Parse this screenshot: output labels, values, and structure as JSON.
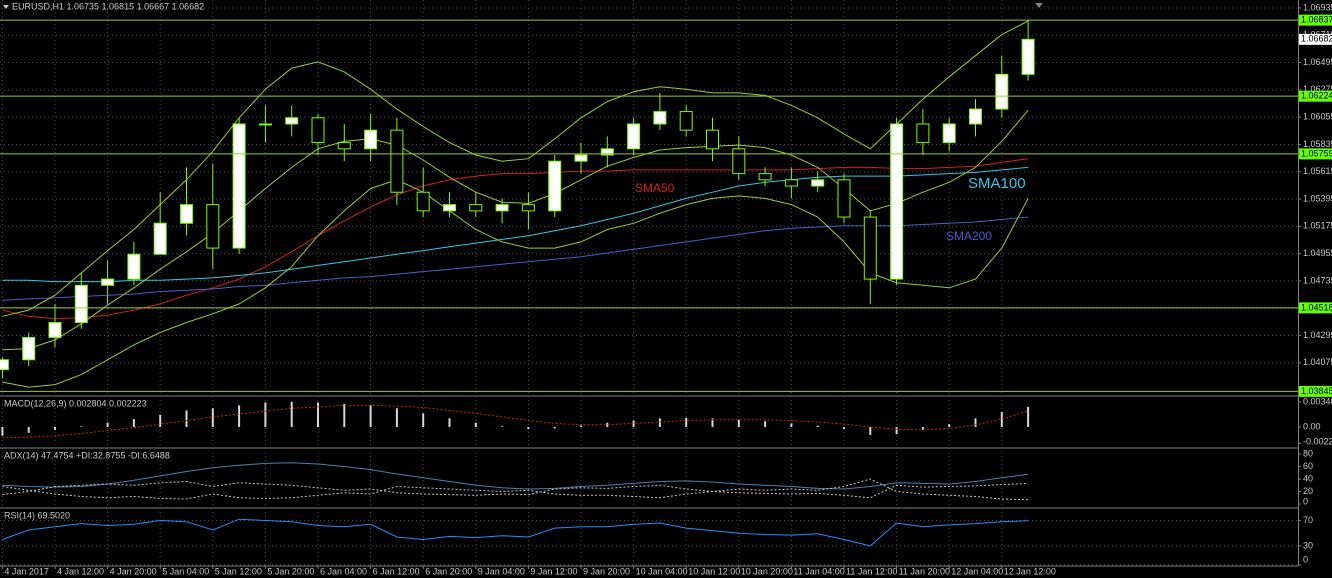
{
  "chart_data": [
    {
      "type": "candlestick",
      "title": "EURUSD,H1  1.06735 1.06815 1.06667 1.06682",
      "categories": [
        "4 Jan 2017",
        null,
        "4 Jan 12:00",
        null,
        "4 Jan 20:00",
        null,
        "5 Jan 04:00",
        null,
        "5 Jan 12:00",
        null,
        "5 Jan 20:00",
        null,
        "6 Jan 04:00",
        null,
        "6 Jan 12:00",
        null,
        "6 Jan 20:00",
        null,
        "9 Jan 04:00",
        null,
        "9 Jan 12:00",
        null,
        "9 Jan 20:00",
        null,
        "10 Jan 04:00",
        null,
        "10 Jan 12:00",
        null,
        "10 Jan 20:00",
        null,
        "11 Jan 04:00",
        null,
        "11 Jan 12:00",
        null,
        "11 Jan 20:00",
        null,
        "12 Jan 04:00",
        null,
        "12 Jan 12:00",
        null
      ],
      "open": [
        1.0402,
        1.041,
        1.0428,
        1.044,
        1.047,
        1.0475,
        1.0495,
        1.052,
        1.0535,
        1.05,
        1.06,
        1.06,
        1.0605,
        1.0585,
        1.058,
        1.0595,
        1.0545,
        1.053,
        1.0535,
        1.053,
        1.0535,
        1.053,
        1.057,
        1.0575,
        1.058,
        1.06,
        1.061,
        1.0595,
        1.058,
        1.056,
        1.0555,
        1.055,
        1.0555,
        1.0525,
        1.0475,
        1.06,
        1.0585,
        1.06,
        1.0612,
        1.064
      ],
      "high": [
        1.0412,
        1.0432,
        1.0455,
        1.048,
        1.049,
        1.0505,
        1.0545,
        1.0565,
        1.0568,
        1.0605,
        1.0615,
        1.0615,
        1.0608,
        1.06,
        1.0608,
        1.0605,
        1.0565,
        1.0545,
        1.0545,
        1.054,
        1.0545,
        1.0575,
        1.0585,
        1.059,
        1.0605,
        1.0625,
        1.0615,
        1.0605,
        1.059,
        1.0565,
        1.0565,
        1.0562,
        1.056,
        1.053,
        1.0605,
        1.0612,
        1.0605,
        1.062,
        1.0655,
        1.06837
      ],
      "low": [
        1.0395,
        1.0405,
        1.042,
        1.0435,
        1.0455,
        1.047,
        1.0495,
        1.051,
        1.0483,
        1.0495,
        1.0585,
        1.059,
        1.0575,
        1.057,
        1.057,
        1.0535,
        1.0525,
        1.0525,
        1.0525,
        1.052,
        1.0515,
        1.0525,
        1.056,
        1.0565,
        1.0575,
        1.0595,
        1.059,
        1.057,
        1.0555,
        1.055,
        1.054,
        1.0545,
        1.052,
        1.0455,
        1.047,
        1.0575,
        1.0578,
        1.059,
        1.0605,
        1.0635
      ],
      "close": [
        1.041,
        1.0428,
        1.044,
        1.047,
        1.0475,
        1.0495,
        1.052,
        1.0535,
        1.05,
        1.06,
        1.06,
        1.0605,
        1.0585,
        1.058,
        1.0595,
        1.0545,
        1.053,
        1.0535,
        1.053,
        1.0535,
        1.053,
        1.057,
        1.0575,
        1.058,
        1.06,
        1.061,
        1.0595,
        1.058,
        1.056,
        1.0555,
        1.055,
        1.0555,
        1.0525,
        1.0475,
        1.06,
        1.0585,
        1.06,
        1.0612,
        1.064,
        1.06682
      ],
      "up_color": "#ffffff",
      "down_color": "#000000",
      "wick_color": "#7cfc00",
      "series": [
        {
          "name": "SMA50",
          "color": "#d2201e",
          "values": [
            1.045,
            1.0445,
            1.0443,
            1.0444,
            1.0446,
            1.045,
            1.0455,
            1.0462,
            1.0468,
            1.0475,
            1.0485,
            1.0497,
            1.051,
            1.0522,
            1.0533,
            1.0543,
            1.055,
            1.0555,
            1.0558,
            1.056,
            1.056,
            1.0561,
            1.0562,
            1.0562,
            1.0563,
            1.0563,
            1.0563,
            1.0563,
            1.0563,
            1.0563,
            1.0563,
            1.0564,
            1.0565,
            1.0565,
            1.0564,
            1.0564,
            1.0565,
            1.0566,
            1.0569,
            1.0572
          ]
        },
        {
          "name": "SMA100",
          "color": "#33c8e8",
          "values": [
            1.0474,
            1.0474,
            1.0473,
            1.0473,
            1.0473,
            1.0474,
            1.0474,
            1.0475,
            1.0476,
            1.0478,
            1.048,
            1.0483,
            1.0486,
            1.0489,
            1.0492,
            1.0495,
            1.0498,
            1.0501,
            1.0504,
            1.0507,
            1.051,
            1.0514,
            1.0518,
            1.0523,
            1.0528,
            1.0534,
            1.054,
            1.0545,
            1.055,
            1.0553,
            1.0555,
            1.0557,
            1.0558,
            1.0558,
            1.0558,
            1.0559,
            1.056,
            1.0561,
            1.0563,
            1.0565
          ]
        },
        {
          "name": "SMA200",
          "color": "#4a5cd0",
          "values": [
            1.0458,
            1.0459,
            1.046,
            1.0461,
            1.0462,
            1.0463,
            1.0465,
            1.0466,
            1.0467,
            1.0469,
            1.047,
            1.0472,
            1.0474,
            1.0476,
            1.0477,
            1.0479,
            1.0481,
            1.0483,
            1.0485,
            1.0487,
            1.0489,
            1.0491,
            1.0493,
            1.0496,
            1.0499,
            1.0502,
            1.0505,
            1.0508,
            1.0511,
            1.0514,
            1.0516,
            1.0517,
            1.0518,
            1.0518,
            1.0518,
            1.0519,
            1.052,
            1.0521,
            1.0523,
            1.0525
          ]
        },
        {
          "color": "#9acd32",
          "values": [
            1.0445,
            1.045,
            1.0462,
            1.048,
            1.0498,
            1.0515,
            1.0535,
            1.0555,
            1.0578,
            1.0605,
            1.0628,
            1.0645,
            1.065,
            1.0642,
            1.0628,
            1.0612,
            1.0598,
            1.0585,
            1.0575,
            1.057,
            1.0572,
            1.0588,
            1.0605,
            1.0618,
            1.0626,
            1.063,
            1.0628,
            1.0625,
            1.0625,
            1.0623,
            1.0615,
            1.0605,
            1.0592,
            1.058,
            1.06,
            1.062,
            1.0638,
            1.0655,
            1.0672,
            1.0683
          ]
        },
        {
          "color": "#9acd32",
          "values": [
            1.0418,
            1.0419,
            1.0426,
            1.0439,
            1.0454,
            1.0468,
            1.0483,
            1.0497,
            1.0512,
            1.053,
            1.0548,
            1.0565,
            1.058,
            1.0586,
            1.0588,
            1.0583,
            1.0571,
            1.0557,
            1.0545,
            1.0537,
            1.0536,
            1.0544,
            1.0555,
            1.0566,
            1.0573,
            1.0579,
            1.0581,
            1.0582,
            1.0583,
            1.0581,
            1.0575,
            1.0565,
            1.0548,
            1.053,
            1.0536,
            1.0545,
            1.0553,
            1.0565,
            1.0586,
            1.0611
          ]
        },
        {
          "color": "#9acd32",
          "values": [
            1.0392,
            1.0388,
            1.039,
            1.0398,
            1.041,
            1.0422,
            1.0432,
            1.044,
            1.0447,
            1.0455,
            1.0468,
            1.0485,
            1.051,
            1.053,
            1.0548,
            1.0555,
            1.0545,
            1.053,
            1.0515,
            1.0505,
            1.05,
            1.05,
            1.0505,
            1.0515,
            1.052,
            1.0528,
            1.0535,
            1.054,
            1.0542,
            1.054,
            1.0535,
            1.0525,
            1.0505,
            1.048,
            1.0472,
            1.047,
            1.0468,
            1.0475,
            1.05,
            1.054
          ]
        }
      ],
      "ylim": [
        1.03816,
        1.06999
      ],
      "yticks": [
        1.06935,
        1.06715,
        1.06495,
        1.06275,
        1.06055,
        1.05835,
        1.05615,
        1.05395,
        1.05175,
        1.04955,
        1.04735,
        1.04515,
        1.04295,
        1.04075
      ],
      "levels": [
        1.06837,
        1.06224,
        1.05759,
        1.04518,
        1.03845
      ],
      "level_color": "#9acd32",
      "level_label_color": "#66ff00",
      "current": 1.06682,
      "grid": true
    },
    {
      "type": "macd",
      "title": "MACD(12,26,9) 0.002804 0.002223",
      "values": [
        -0.0012,
        -0.0008,
        -0.0004,
        0.0001,
        0.0006,
        0.0011,
        0.0017,
        0.0023,
        0.0026,
        0.003,
        0.0034,
        0.0035,
        0.0034,
        0.0032,
        0.003,
        0.0026,
        0.0019,
        0.0012,
        0.0006,
        0.0001,
        -0.0003,
        -0.0002,
        0.0002,
        0.0006,
        0.0009,
        0.0012,
        0.0013,
        0.0012,
        0.001,
        0.0008,
        0.0005,
        0.0002,
        -0.0003,
        -0.0011,
        -0.001,
        -0.0004,
        0.0004,
        0.0012,
        0.0021,
        0.002804
      ],
      "color": "#d8d8d8",
      "series": [
        {
          "color": "#d2201e",
          "dash": true,
          "values": [
            -0.0015,
            -0.0014,
            -0.0012,
            -0.0009,
            -0.0005,
            -0.0001,
            0.0004,
            0.0009,
            0.0014,
            0.0018,
            0.0022,
            0.0026,
            0.0028,
            0.003,
            0.003,
            0.0029,
            0.0027,
            0.0023,
            0.0019,
            0.0014,
            0.0009,
            0.0005,
            0.0003,
            0.0003,
            0.0005,
            0.0007,
            0.0009,
            0.001,
            0.001,
            0.001,
            0.0009,
            0.0007,
            0.0004,
            0.0,
            -0.0003,
            -0.0004,
            -0.0002,
            0.0003,
            0.0011,
            0.002223
          ]
        }
      ],
      "ylim": [
        -0.00277,
        0.00416
      ],
      "yticks": [
        0.003465,
        {
          "value": 0,
          "label": "0.00"
        },
        -0.00227
      ],
      "grid": false
    },
    {
      "type": "line",
      "title": "ADX(14) 47.4754 +DI:32.8755 -DI:6.6488",
      "series": [
        {
          "color": "#4682b4",
          "values": [
            30,
            28,
            27,
            28,
            32,
            38,
            45,
            52,
            58,
            62,
            65,
            66,
            64,
            60,
            55,
            48,
            42,
            36,
            30,
            26,
            24,
            25,
            28,
            30,
            33,
            36,
            37,
            35,
            32,
            30,
            28,
            25,
            24,
            28,
            34,
            33,
            32,
            36,
            42,
            47.4754
          ]
        },
        {
          "color": "#c8c8c8",
          "dash": true,
          "values": [
            15,
            20,
            28,
            30,
            32,
            30,
            34,
            36,
            28,
            34,
            32,
            30,
            26,
            22,
            24,
            18,
            16,
            15,
            14,
            16,
            15,
            24,
            26,
            25,
            28,
            30,
            24,
            20,
            18,
            17,
            16,
            17,
            14,
            10,
            30,
            27,
            28,
            29,
            31,
            32.8755
          ]
        },
        {
          "color": "#c8c8c8",
          "dash": true,
          "values": [
            28,
            22,
            16,
            12,
            10,
            12,
            9,
            8,
            16,
            10,
            9,
            10,
            14,
            18,
            16,
            28,
            26,
            24,
            22,
            20,
            22,
            16,
            14,
            14,
            12,
            10,
            16,
            20,
            24,
            22,
            24,
            22,
            28,
            40,
            20,
            16,
            14,
            12,
            8,
            6.6488
          ]
        }
      ],
      "ylim": [
        -4.8,
        88
      ],
      "yticks": [
        80,
        60,
        40,
        20,
        0
      ],
      "grid": false
    },
    {
      "type": "line",
      "title": "RSI(14) 69.5020",
      "series": [
        {
          "color": "#1e90ff",
          "values": [
            40,
            55,
            60,
            65,
            62,
            64,
            70,
            68,
            55,
            72,
            70,
            68,
            62,
            60,
            64,
            44,
            40,
            45,
            43,
            46,
            44,
            58,
            60,
            60,
            64,
            66,
            58,
            54,
            50,
            48,
            47,
            49,
            40,
            30,
            66,
            60,
            63,
            65,
            68,
            69.502
          ]
        }
      ],
      "ylim": [
        0,
        88
      ],
      "yticks": [
        70,
        30,
        0
      ],
      "grid": true
    }
  ]
}
